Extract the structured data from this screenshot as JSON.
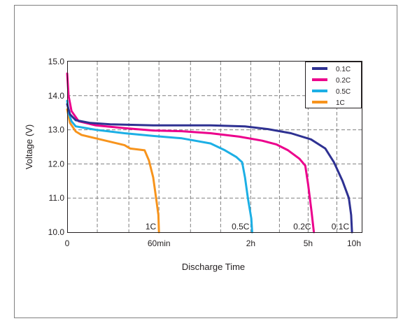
{
  "chart_data": {
    "type": "line",
    "title": "",
    "xlabel": "Discharge Time",
    "ylabel": "Voltage (V)",
    "ylim": [
      10.0,
      15.0
    ],
    "yticks": [
      "10.0",
      "11.0",
      "12.0",
      "13.0",
      "14.0",
      "15.0"
    ],
    "y_tick_values": [
      10,
      11,
      12,
      13,
      14,
      15
    ],
    "xlim": [
      0,
      10
    ],
    "x_tick_labels": [
      {
        "label": "0",
        "x": 0
      },
      {
        "label": "60min",
        "x": 3.2
      },
      {
        "label": "2h",
        "x": 6.4
      },
      {
        "label": "5h",
        "x": 8.4
      },
      {
        "label": "10h",
        "x": 10
      }
    ],
    "x_note": "x axis is a non-uniform time scale; x values are positions on that printed scale (0 → 10h)",
    "x_grid": [
      1.05,
      2.15,
      3.2,
      4.3,
      5.35,
      6.4,
      7.4,
      8.4,
      9.4
    ],
    "grid": true,
    "legend_position": "top-right",
    "series": [
      {
        "name": "0.1C",
        "color": "#2e3192",
        "end_label": "0.1C",
        "points": [
          [
            0,
            13.75
          ],
          [
            0.1,
            13.45
          ],
          [
            0.3,
            13.28
          ],
          [
            0.8,
            13.2
          ],
          [
            1.5,
            13.16
          ],
          [
            3,
            13.13
          ],
          [
            5,
            13.13
          ],
          [
            6.2,
            13.1
          ],
          [
            7,
            13.02
          ],
          [
            7.8,
            12.9
          ],
          [
            8.5,
            12.72
          ],
          [
            9,
            12.45
          ],
          [
            9.3,
            12.05
          ],
          [
            9.6,
            11.5
          ],
          [
            9.82,
            11.0
          ],
          [
            9.9,
            10.5
          ],
          [
            9.93,
            10.0
          ]
        ]
      },
      {
        "name": "0.2C",
        "color": "#ec008c",
        "end_label": "0.2C",
        "points": [
          [
            0,
            14.65
          ],
          [
            0.05,
            14.0
          ],
          [
            0.15,
            13.55
          ],
          [
            0.4,
            13.25
          ],
          [
            1,
            13.13
          ],
          [
            2,
            13.05
          ],
          [
            3,
            12.98
          ],
          [
            4,
            12.96
          ],
          [
            5,
            12.9
          ],
          [
            6,
            12.8
          ],
          [
            6.8,
            12.68
          ],
          [
            7.3,
            12.57
          ],
          [
            7.7,
            12.4
          ],
          [
            8.1,
            12.15
          ],
          [
            8.3,
            11.95
          ],
          [
            8.4,
            11.4
          ],
          [
            8.52,
            10.6
          ],
          [
            8.6,
            10.0
          ]
        ]
      },
      {
        "name": "0.5C",
        "color": "#1cafe5",
        "end_label": "0.5C",
        "points": [
          [
            0,
            13.85
          ],
          [
            0.05,
            13.5
          ],
          [
            0.15,
            13.25
          ],
          [
            0.3,
            13.1
          ],
          [
            1,
            13.0
          ],
          [
            2,
            12.9
          ],
          [
            3,
            12.82
          ],
          [
            4,
            12.75
          ],
          [
            5,
            12.6
          ],
          [
            5.5,
            12.4
          ],
          [
            5.9,
            12.2
          ],
          [
            6.1,
            12.05
          ],
          [
            6.2,
            11.6
          ],
          [
            6.3,
            11.0
          ],
          [
            6.42,
            10.4
          ],
          [
            6.45,
            10.0
          ]
        ]
      },
      {
        "name": "1C",
        "color": "#f7941d",
        "end_label": "1C",
        "points": [
          [
            0,
            13.6
          ],
          [
            0.1,
            13.2
          ],
          [
            0.3,
            12.95
          ],
          [
            0.5,
            12.85
          ],
          [
            1,
            12.75
          ],
          [
            1.5,
            12.65
          ],
          [
            2,
            12.55
          ],
          [
            2.2,
            12.45
          ],
          [
            2.5,
            12.42
          ],
          [
            2.7,
            12.4
          ],
          [
            2.85,
            12.1
          ],
          [
            3,
            11.6
          ],
          [
            3.1,
            11.0
          ],
          [
            3.18,
            10.5
          ],
          [
            3.2,
            10.0
          ]
        ]
      }
    ]
  }
}
